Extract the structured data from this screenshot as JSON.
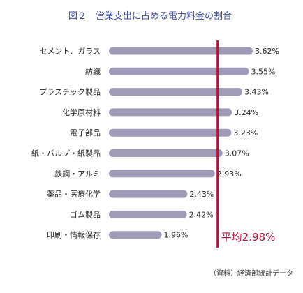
{
  "chart_data": {
    "type": "bar",
    "orientation": "horizontal",
    "title": "図２　営業支出に占める電力料金の割合",
    "categories": [
      "セメント、ガラス",
      "紡織",
      "プラスチック製品",
      "化学原材料",
      "電子部品",
      "紙・パルプ・紙製品",
      "鉄鋼・アルミ",
      "薬品・医療化学",
      "ゴム製品",
      "印刷・情報保存"
    ],
    "values": [
      3.62,
      3.55,
      3.43,
      3.24,
      3.23,
      3.07,
      2.93,
      2.43,
      2.42,
      1.96
    ],
    "value_labels": [
      "3.62%",
      "3.55%",
      "3.43%",
      "3.24%",
      "3.23%",
      "3.07%",
      "2.93%",
      "2.43%",
      "2.42%",
      "1.96%"
    ],
    "xlim": [
      1.0,
      3.62
    ],
    "reference_line": {
      "value": 2.98,
      "label": "平均2.98%",
      "color": "#b5123a"
    },
    "bar_color": "#9e9ab8",
    "title_color": "#3c4aa0",
    "source": "（資料）経済部統計データ",
    "grid": false,
    "legend": "none"
  }
}
